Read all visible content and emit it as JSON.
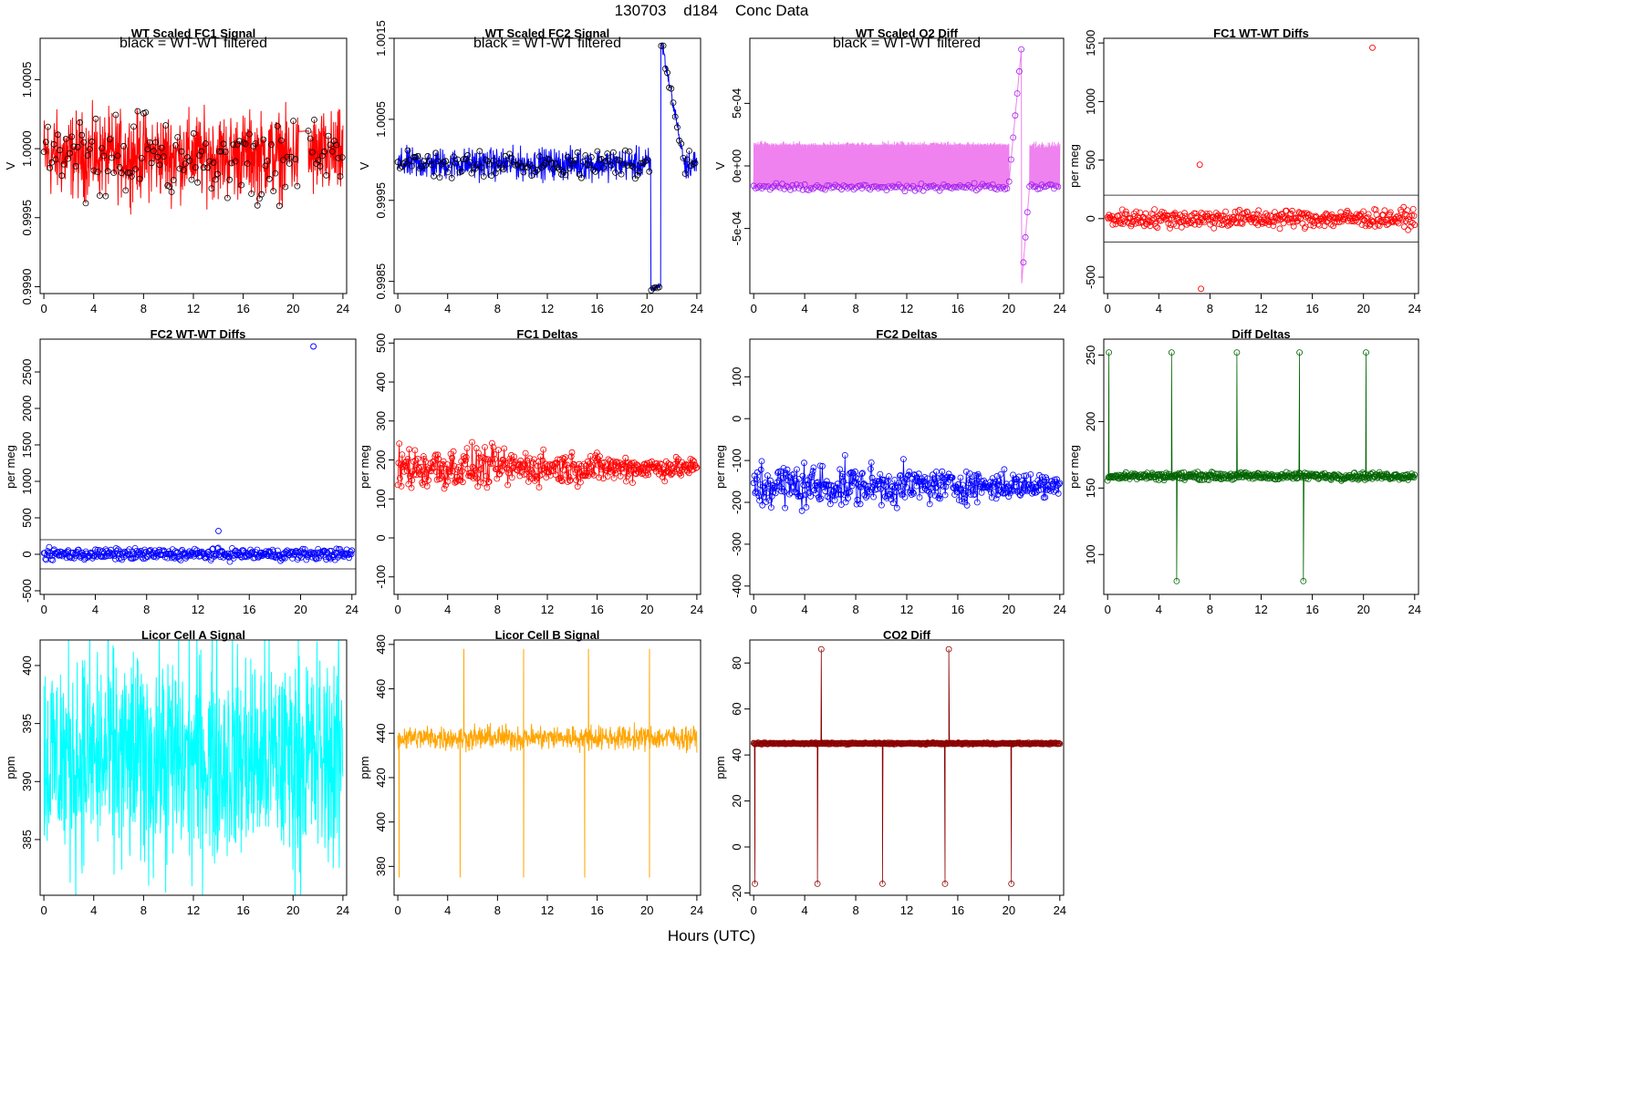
{
  "page": {
    "title": "130703    d184    Conc Data",
    "xlabel": "Hours (UTC)"
  },
  "x_ticks": [
    0,
    4,
    8,
    12,
    16,
    20,
    24
  ],
  "chart_data": [
    {
      "id": "fc1-signal",
      "type": "line",
      "title": "WT Scaled FC1 Signal",
      "subtitle": "black = WT-WT filtered",
      "ylabel": "V",
      "xlim": [
        -0.3,
        24.3
      ],
      "ylim": [
        0.99895,
        1.0008
      ],
      "yticks": [
        0.999,
        0.9995,
        1.0,
        1.0005
      ],
      "ytick_labels": [
        "0.9990",
        "0.9995",
        "1.0000",
        "1.0005"
      ],
      "color": "#ff0000",
      "overlay_color": "#000000",
      "center": 0.99995,
      "spread": 0.00045,
      "gap": [
        20.5,
        21.2
      ],
      "overlay_points": true
    },
    {
      "id": "fc2-signal",
      "type": "line",
      "title": "WT Scaled FC2 Signal",
      "subtitle": "black = WT-WT filtered",
      "ylabel": "V",
      "xlim": [
        -0.3,
        24.3
      ],
      "ylim": [
        0.99835,
        1.0015
      ],
      "yticks": [
        0.9985,
        0.9995,
        1.0005,
        1.0015
      ],
      "ytick_labels": [
        "0.9985",
        "0.9995",
        "1.0005",
        "1.0015"
      ],
      "color": "#0000ff",
      "overlay_color": "#000000",
      "center": 0.99995,
      "spread": 0.00028,
      "excursion": {
        "start": 20.3,
        "low": 0.9984,
        "peak": 21.1,
        "high": 1.0015,
        "end": 23.0
      },
      "overlay_points": true
    },
    {
      "id": "o2-diff",
      "type": "line",
      "title": "WT Scaled O2 Diff",
      "subtitle": "black = WT-WT filtered",
      "ylabel": "V",
      "xlim": [
        -0.3,
        24.3
      ],
      "ylim": [
        -0.00102,
        0.00102
      ],
      "yticks": [
        -0.0005,
        0,
        0.0005
      ],
      "ytick_labels": [
        "-5e-04",
        "0e+00",
        "5e-04"
      ],
      "color": "#ee82ee",
      "overlay_color": "#a020f0",
      "upper_band": 0.00017,
      "lower_band": -0.00017,
      "ramp": {
        "start": 20.0,
        "end": 21.0,
        "low": -0.00015,
        "high": 0.00095
      },
      "ramp2": {
        "start": 21.0,
        "end": 21.6,
        "low": -0.00095,
        "high": -0.0002
      }
    },
    {
      "id": "fc1-wtwt",
      "type": "scatter",
      "title": "FC1 WT-WT Diffs",
      "ylabel": "per meg",
      "xlim": [
        -0.3,
        24.3
      ],
      "ylim": [
        -640,
        1540
      ],
      "yticks": [
        -500,
        0,
        500,
        1000,
        1500
      ],
      "ytick_labels": [
        "-500",
        "0",
        "500",
        "1000",
        "1500"
      ],
      "color": "#ff0000",
      "hlines": [
        200,
        -200
      ],
      "center": 0,
      "spread": 110,
      "outliers": [
        {
          "x": 20.7,
          "y": 1460
        },
        {
          "x": 7.2,
          "y": 460
        },
        {
          "x": 7.3,
          "y": -600
        }
      ]
    },
    {
      "id": "fc2-wtwt",
      "type": "scatter",
      "title": "FC2 WT-WT Diffs",
      "ylabel": "per meg",
      "xlim": [
        -0.3,
        24.3
      ],
      "ylim": [
        -550,
        2950
      ],
      "yticks": [
        -500,
        0,
        500,
        1000,
        1500,
        2000,
        2500
      ],
      "ytick_labels": [
        "-500",
        "0",
        "500",
        "1000",
        "1500",
        "2000",
        "2500"
      ],
      "color": "#0000ff",
      "hlines": [
        200,
        -200
      ],
      "center": 0,
      "spread": 110,
      "outliers": [
        {
          "x": 21.0,
          "y": 2850
        },
        {
          "x": 13.6,
          "y": 320
        }
      ]
    },
    {
      "id": "fc1-deltas",
      "type": "line-points",
      "title": "FC1 Deltas",
      "ylabel": "per meg",
      "xlim": [
        -0.3,
        24.3
      ],
      "ylim": [
        -145,
        510
      ],
      "yticks": [
        -100,
        0,
        100,
        200,
        300,
        400,
        500
      ],
      "ytick_labels": [
        "-100",
        "0",
        "100",
        "200",
        "300",
        "400",
        "500"
      ],
      "color": "#ff0000",
      "center": 180,
      "spread": 90,
      "spread_end": 35
    },
    {
      "id": "fc2-deltas",
      "type": "line-points",
      "title": "FC2 Deltas",
      "ylabel": "per meg",
      "xlim": [
        -0.3,
        24.3
      ],
      "ylim": [
        -420,
        190
      ],
      "yticks": [
        -400,
        -300,
        -200,
        -100,
        0,
        100
      ],
      "ytick_labels": [
        "-400",
        "-300",
        "-200",
        "-100",
        "0",
        "100"
      ],
      "color": "#0000ff",
      "center": -160,
      "spread": 90,
      "spread_end": 40
    },
    {
      "id": "diff-deltas",
      "type": "line-points",
      "title": "Diff Deltas",
      "ylabel": "per meg",
      "xlim": [
        -0.3,
        24.3
      ],
      "ylim": [
        70,
        262
      ],
      "yticks": [
        100,
        150,
        200,
        250
      ],
      "ytick_labels": [
        "100",
        "150",
        "200",
        "250"
      ],
      "color": "#006400",
      "center": 159,
      "spread": 4,
      "spikes_up": [
        0.1,
        5.0,
        10.1,
        15.0,
        20.2
      ],
      "spikes_down": [
        5.4,
        15.3
      ],
      "spike_high": 252,
      "spike_low": 80
    },
    {
      "id": "licor-a",
      "type": "line",
      "title": "Licor Cell A Signal",
      "ylabel": "ppm",
      "xlim": [
        -0.3,
        24.3
      ],
      "ylim": [
        380.2,
        402.2
      ],
      "yticks": [
        385,
        390,
        395,
        400
      ],
      "ytick_labels": [
        "385",
        "390",
        "395",
        "400"
      ],
      "color": "#00ffff",
      "center": 392,
      "spread": 14
    },
    {
      "id": "licor-b",
      "type": "line",
      "title": "Licor Cell B Signal",
      "ylabel": "ppm",
      "xlim": [
        -0.3,
        24.3
      ],
      "ylim": [
        367,
        482
      ],
      "yticks": [
        380,
        400,
        420,
        440,
        460,
        480
      ],
      "ytick_labels": [
        "380",
        "400",
        "420",
        "440",
        "460",
        "480"
      ],
      "color": "#ffa500",
      "center": 438,
      "spread": 8,
      "spikes_down": [
        0.1,
        5.0,
        10.1,
        15.0,
        20.2
      ],
      "spikes_up": [
        5.3,
        15.3,
        10.1,
        20.2
      ],
      "spike_low": 375,
      "spike_high": 478
    },
    {
      "id": "co2-diff",
      "type": "line-points",
      "title": "CO2 Diff",
      "ylabel": "ppm",
      "xlim": [
        -0.3,
        24.3
      ],
      "ylim": [
        -21,
        90
      ],
      "yticks": [
        -20,
        0,
        20,
        40,
        60,
        80
      ],
      "ytick_labels": [
        "-20",
        "0",
        "20",
        "40",
        "60",
        "80"
      ],
      "color": "#8b0000",
      "center": 45,
      "spread": 0.5,
      "spikes_down": [
        0.1,
        5.0,
        10.1,
        15.0,
        20.2
      ],
      "spikes_up": [
        5.3,
        15.3
      ],
      "spike_low": -16,
      "spike_high": 86
    }
  ]
}
